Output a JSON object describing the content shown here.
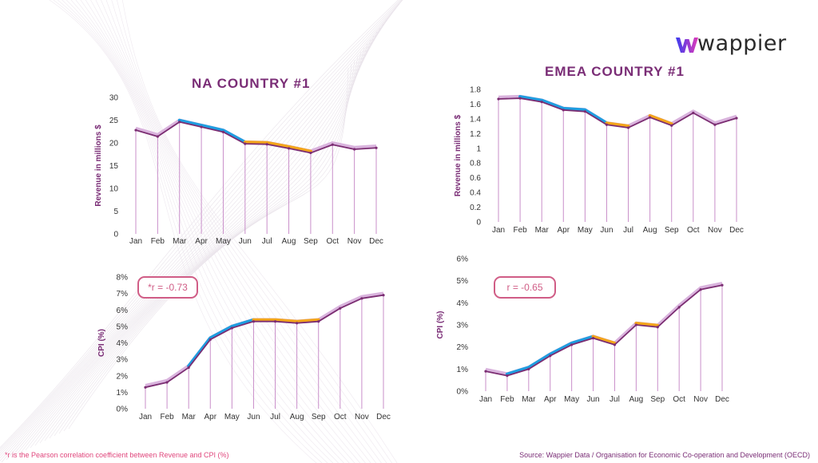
{
  "brand": {
    "name": "wappier",
    "w_gradient_start": "#3a3cf0",
    "w_gradient_end": "#e03ab8"
  },
  "colors": {
    "title": "#7a2d76",
    "line_main": "#7b2d72",
    "line_shadow": "#d9b3dd",
    "drop_line": "#c98fca",
    "highlight_blue": "#1e9ee0",
    "highlight_orange": "#f3a51a",
    "badge": "#d05d86"
  },
  "footnote": "*r is the Pearson correlation coefficient between Revenue and CPI (%)",
  "source": "Source: Wappier Data / Organisation for Economic Co-operation and Development (OECD)",
  "panels": {
    "na": {
      "title": "NA COUNTRY #1",
      "r_label": "*r = -0.73"
    },
    "emea": {
      "title": "EMEA COUNTRY #1",
      "r_label": "r = -0.65"
    }
  },
  "chart_data": [
    {
      "id": "na_revenue",
      "type": "line",
      "title": "",
      "categories": [
        "Jan",
        "Feb",
        "Mar",
        "Apr",
        "May",
        "Jun",
        "Jul",
        "Aug",
        "Sep",
        "Oct",
        "Nov",
        "Dec"
      ],
      "values": [
        22.8,
        21.4,
        24.6,
        23.5,
        22.4,
        19.8,
        19.7,
        18.8,
        17.8,
        19.6,
        18.6,
        18.9
      ],
      "ylabel": "Revenue in millions $",
      "xlabel": "",
      "ylim": [
        0,
        30
      ],
      "yticks": [
        0,
        5,
        10,
        15,
        20,
        25,
        30
      ],
      "ytick_labels": [
        "0",
        "5",
        "10",
        "15",
        "20",
        "25",
        "30"
      ],
      "highlights": [
        {
          "from": 2,
          "to": 5,
          "color": "blue"
        },
        {
          "from": 5,
          "to": 8,
          "color": "orange"
        }
      ],
      "grid": false
    },
    {
      "id": "emea_revenue",
      "type": "line",
      "title": "",
      "categories": [
        "Jan",
        "Feb",
        "Mar",
        "Apr",
        "May",
        "Jun",
        "Jul",
        "Aug",
        "Sep",
        "Oct",
        "Nov",
        "Dec"
      ],
      "values": [
        1.67,
        1.68,
        1.63,
        1.52,
        1.5,
        1.32,
        1.28,
        1.42,
        1.31,
        1.48,
        1.32,
        1.41
      ],
      "ylabel": "Revenue in millions $",
      "xlabel": "",
      "ylim": [
        0,
        1.8
      ],
      "yticks": [
        0,
        0.2,
        0.4,
        0.6,
        0.8,
        1,
        1.2,
        1.4,
        1.6,
        1.8
      ],
      "ytick_labels": [
        "0",
        "0.2",
        "0.4",
        "0.6",
        "0.8",
        "1",
        "1.2",
        "1.4",
        "1.6",
        "1.8"
      ],
      "highlights": [
        {
          "from": 1,
          "to": 5,
          "color": "blue"
        },
        {
          "from": 5,
          "to": 6,
          "color": "orange"
        },
        {
          "from": 7,
          "to": 8,
          "color": "orange"
        }
      ],
      "grid": false
    },
    {
      "id": "na_cpi",
      "type": "line",
      "title": "",
      "categories": [
        "Jan",
        "Feb",
        "Mar",
        "Apr",
        "May",
        "Jun",
        "Jul",
        "Aug",
        "Sep",
        "Oct",
        "Nov",
        "Dec"
      ],
      "values": [
        1.3,
        1.6,
        2.5,
        4.2,
        4.9,
        5.3,
        5.3,
        5.2,
        5.3,
        6.1,
        6.7,
        6.9
      ],
      "ylabel": "CPI (%)",
      "xlabel": "",
      "ylim": [
        0,
        8
      ],
      "yticks": [
        0,
        1,
        2,
        3,
        4,
        5,
        6,
        7,
        8
      ],
      "ytick_labels": [
        "0%",
        "1%",
        "2%",
        "3%",
        "4%",
        "5%",
        "6%",
        "7%",
        "8%"
      ],
      "highlights": [
        {
          "from": 2,
          "to": 5,
          "color": "blue"
        },
        {
          "from": 5,
          "to": 8,
          "color": "orange"
        }
      ],
      "grid": false
    },
    {
      "id": "emea_cpi",
      "type": "line",
      "title": "",
      "categories": [
        "Jan",
        "Feb",
        "Mar",
        "Apr",
        "May",
        "Jun",
        "Jul",
        "Aug",
        "Sep",
        "Oct",
        "Nov",
        "Dec"
      ],
      "values": [
        0.9,
        0.7,
        1.0,
        1.6,
        2.1,
        2.4,
        2.1,
        3.0,
        2.9,
        3.8,
        4.6,
        4.8
      ],
      "ylabel": "CPI (%)",
      "xlabel": "",
      "ylim": [
        0,
        6
      ],
      "yticks": [
        0,
        1,
        2,
        3,
        4,
        5,
        6
      ],
      "ytick_labels": [
        "0%",
        "1%",
        "2%",
        "3%",
        "4%",
        "5%",
        "6%"
      ],
      "highlights": [
        {
          "from": 1,
          "to": 5,
          "color": "blue"
        },
        {
          "from": 5,
          "to": 6,
          "color": "orange"
        },
        {
          "from": 7,
          "to": 8,
          "color": "orange"
        }
      ],
      "grid": false
    }
  ]
}
